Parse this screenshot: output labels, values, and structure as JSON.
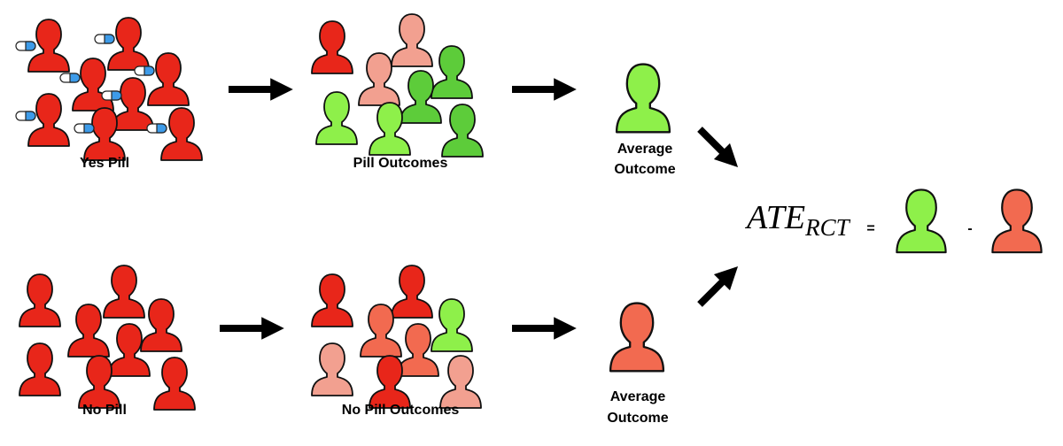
{
  "top": {
    "group": "Yes Pill",
    "outcomes": "Pill Outcomes",
    "average": [
      "Average",
      "Outcome"
    ]
  },
  "bottom": {
    "group": "No Pill",
    "outcomes": "No Pill Outcomes",
    "average": [
      "Average",
      "Outcome"
    ]
  },
  "formula": {
    "ate": "ATE",
    "subscript": "RCT",
    "equals": "=",
    "minus": "-"
  }
}
